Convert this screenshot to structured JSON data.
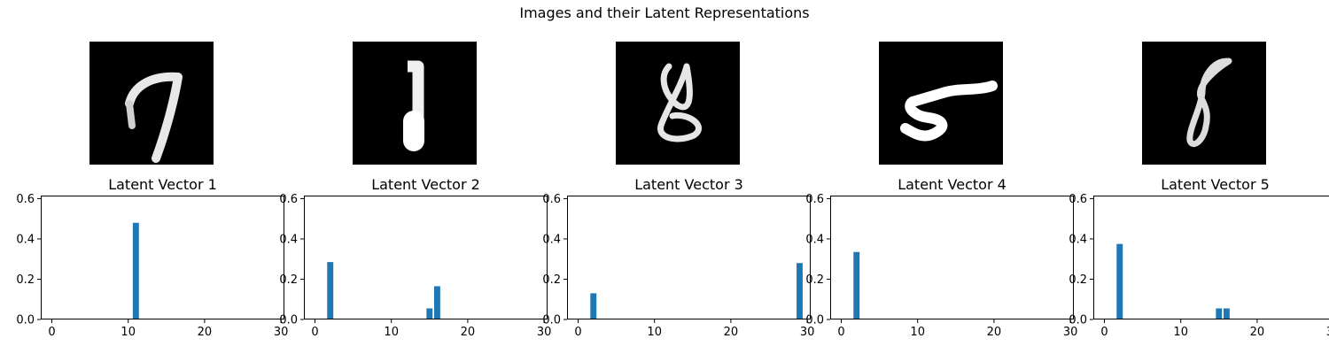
{
  "figure": {
    "title": "Images and their Latent Representations"
  },
  "colors": {
    "bar": "#1f77b4",
    "axis": "#000000",
    "image_bg": "#000000",
    "stroke": "#ffffff"
  },
  "images": [
    {
      "label": "digit-7",
      "digit": "7"
    },
    {
      "label": "digit-1",
      "digit": "1"
    },
    {
      "label": "digit-8",
      "digit": "8"
    },
    {
      "label": "digit-5",
      "digit": "5"
    },
    {
      "label": "digit-8",
      "digit": "8"
    }
  ],
  "chart_data": [
    {
      "type": "bar",
      "title": "Latent Vector 1",
      "x": [
        11
      ],
      "values": [
        0.48
      ],
      "xlim": [
        -1.45,
        30.45
      ],
      "ylim": [
        0,
        0.615
      ],
      "xticks": [
        0,
        10,
        20,
        30
      ],
      "yticks": [
        0.0,
        0.2,
        0.4,
        0.6
      ],
      "xtick_labels": [
        "0",
        "10",
        "20",
        "30"
      ],
      "ytick_labels": [
        "0.0",
        "0.2",
        "0.4",
        "0.6"
      ],
      "grid": false
    },
    {
      "type": "bar",
      "title": "Latent Vector 2",
      "x": [
        2,
        15,
        16
      ],
      "values": [
        0.285,
        0.055,
        0.165
      ],
      "xlim": [
        -1.45,
        30.45
      ],
      "ylim": [
        0,
        0.615
      ],
      "xticks": [
        0,
        10,
        20,
        30
      ],
      "yticks": [
        0.0,
        0.2,
        0.4,
        0.6
      ],
      "xtick_labels": [
        "0",
        "10",
        "20",
        "30"
      ],
      "ytick_labels": [
        "0.0",
        "0.2",
        "0.4",
        "0.6"
      ],
      "grid": false
    },
    {
      "type": "bar",
      "title": "Latent Vector 3",
      "x": [
        2,
        29
      ],
      "values": [
        0.13,
        0.28
      ],
      "xlim": [
        -1.45,
        30.45
      ],
      "ylim": [
        0,
        0.615
      ],
      "xticks": [
        0,
        10,
        20,
        30
      ],
      "yticks": [
        0.0,
        0.2,
        0.4,
        0.6
      ],
      "xtick_labels": [
        "0",
        "10",
        "20",
        "30"
      ],
      "ytick_labels": [
        "0.0",
        "0.2",
        "0.4",
        "0.6"
      ],
      "grid": false
    },
    {
      "type": "bar",
      "title": "Latent Vector 4",
      "x": [
        2
      ],
      "values": [
        0.335
      ],
      "xlim": [
        -1.45,
        30.45
      ],
      "ylim": [
        0,
        0.615
      ],
      "xticks": [
        0,
        10,
        20,
        30
      ],
      "yticks": [
        0.0,
        0.2,
        0.4,
        0.6
      ],
      "xtick_labels": [
        "0",
        "10",
        "20",
        "30"
      ],
      "ytick_labels": [
        "0.0",
        "0.2",
        "0.4",
        "0.6"
      ],
      "grid": false
    },
    {
      "type": "bar",
      "title": "Latent Vector 5",
      "x": [
        2,
        15,
        16
      ],
      "values": [
        0.375,
        0.055,
        0.055
      ],
      "xlim": [
        -1.45,
        30.45
      ],
      "ylim": [
        0,
        0.615
      ],
      "xticks": [
        0,
        10,
        20,
        30
      ],
      "yticks": [
        0.0,
        0.2,
        0.4,
        0.6
      ],
      "xtick_labels": [
        "0",
        "10",
        "20",
        "30"
      ],
      "ytick_labels": [
        "0.0",
        "0.2",
        "0.4",
        "0.6"
      ],
      "grid": false
    }
  ]
}
